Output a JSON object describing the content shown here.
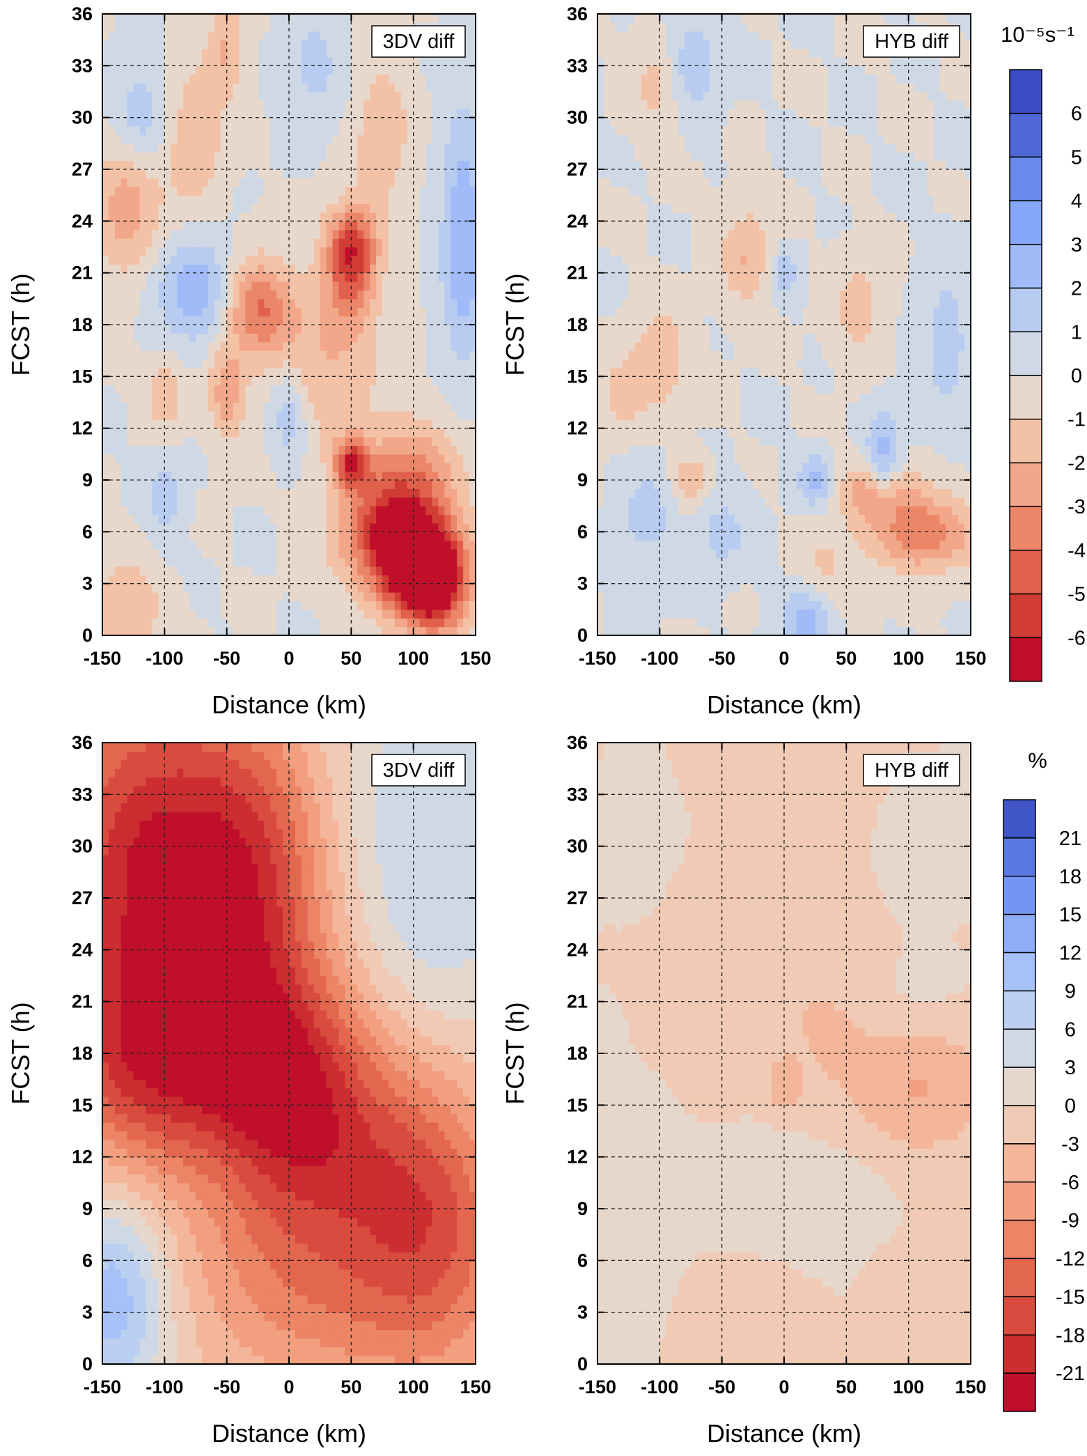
{
  "chart_data": [
    {
      "id": "p1",
      "type": "heatmap",
      "subtype": "contour",
      "title": "3DV diff",
      "xlabel": "Distance (km)",
      "ylabel": "FCST (h)",
      "xlim": [
        -150,
        150
      ],
      "ylim": [
        0,
        36
      ],
      "xticks": [
        -150,
        -100,
        -50,
        0,
        50,
        100,
        150
      ],
      "yticks": [
        0,
        3,
        6,
        9,
        12,
        15,
        18,
        21,
        24,
        27,
        30,
        33,
        36
      ],
      "colorbar": "cb1",
      "features": [
        {
          "x": 85,
          "y": 6,
          "value": -6,
          "sx": 30,
          "sy": 2.5
        },
        {
          "x": 120,
          "y": 3,
          "value": -6,
          "sx": 18,
          "sy": 2
        },
        {
          "x": 100,
          "y": 4,
          "value": -5,
          "sx": 20,
          "sy": 2
        },
        {
          "x": 50,
          "y": 10,
          "value": -5,
          "sx": 10,
          "sy": 1
        },
        {
          "x": 50,
          "y": 21,
          "value": -4,
          "sx": 14,
          "sy": 2
        },
        {
          "x": -25,
          "y": 19,
          "value": -4,
          "sx": 20,
          "sy": 2
        },
        {
          "x": 50,
          "y": 23,
          "value": -3,
          "sx": 15,
          "sy": 1.5
        },
        {
          "x": 30,
          "y": 16,
          "value": -2,
          "sx": 30,
          "sy": 3
        },
        {
          "x": -130,
          "y": 25,
          "value": -2.5,
          "sx": 20,
          "sy": 3
        },
        {
          "x": -50,
          "y": 14,
          "value": -2.5,
          "sx": 10,
          "sy": 2
        },
        {
          "x": -100,
          "y": 14,
          "value": -2,
          "sx": 10,
          "sy": 1.5
        },
        {
          "x": -75,
          "y": 29,
          "value": -2,
          "sx": 15,
          "sy": 3
        },
        {
          "x": -50,
          "y": 34,
          "value": -2,
          "sx": 10,
          "sy": 2
        },
        {
          "x": 75,
          "y": 29,
          "value": -2,
          "sx": 15,
          "sy": 3
        },
        {
          "x": 100,
          "y": 10,
          "value": -2,
          "sx": 30,
          "sy": 2
        },
        {
          "x": -130,
          "y": 1.5,
          "value": -2,
          "sx": 20,
          "sy": 2
        },
        {
          "x": -75,
          "y": 20,
          "value": 3,
          "sx": 22,
          "sy": 2
        },
        {
          "x": 140,
          "y": 23,
          "value": 3,
          "sx": 12,
          "sy": 5
        },
        {
          "x": -120,
          "y": 30,
          "value": 2,
          "sx": 15,
          "sy": 2
        },
        {
          "x": 0,
          "y": 13,
          "value": 2,
          "sx": 10,
          "sy": 2
        },
        {
          "x": 20,
          "y": 33,
          "value": 1.5,
          "sx": 15,
          "sy": 2
        },
        {
          "x": -100,
          "y": 8,
          "value": 1.5,
          "sx": 10,
          "sy": 2
        }
      ]
    },
    {
      "id": "p2",
      "type": "heatmap",
      "subtype": "contour",
      "title": "HYB diff",
      "xlabel": "Distance (km)",
      "ylabel": "FCST (h)",
      "xlim": [
        -150,
        150
      ],
      "ylim": [
        0,
        36
      ],
      "xticks": [
        -150,
        -100,
        -50,
        0,
        50,
        100,
        150
      ],
      "yticks": [
        0,
        3,
        6,
        9,
        12,
        15,
        18,
        21,
        24,
        27,
        30,
        33,
        36
      ],
      "colorbar": "cb1",
      "features": [
        {
          "x": 110,
          "y": 6,
          "value": -4,
          "sx": 30,
          "sy": 1.5
        },
        {
          "x": 75,
          "y": 8.5,
          "value": -3,
          "sx": 20,
          "sy": 1.2
        },
        {
          "x": -100,
          "y": 16,
          "value": -2,
          "sx": 15,
          "sy": 2
        },
        {
          "x": -30,
          "y": 22,
          "value": -2,
          "sx": 15,
          "sy": 2
        },
        {
          "x": -130,
          "y": 14,
          "value": -1.5,
          "sx": 12,
          "sy": 1.5
        },
        {
          "x": 60,
          "y": 19,
          "value": -1.5,
          "sx": 15,
          "sy": 2
        },
        {
          "x": -75,
          "y": 9,
          "value": -2,
          "sx": 10,
          "sy": 1
        },
        {
          "x": -100,
          "y": 32,
          "value": -1.5,
          "sx": 15,
          "sy": 2
        },
        {
          "x": 30,
          "y": 3,
          "value": -1.5,
          "sx": 15,
          "sy": 2
        },
        {
          "x": 80,
          "y": 10,
          "value": 3,
          "sx": 10,
          "sy": 2
        },
        {
          "x": 20,
          "y": 1,
          "value": 3,
          "sx": 15,
          "sy": 1.5
        },
        {
          "x": -75,
          "y": 33,
          "value": 2,
          "sx": 15,
          "sy": 2
        },
        {
          "x": 0,
          "y": 21,
          "value": 2,
          "sx": 8,
          "sy": 1
        },
        {
          "x": 25,
          "y": 9,
          "value": 2.5,
          "sx": 10,
          "sy": 1
        },
        {
          "x": 130,
          "y": 17,
          "value": 1.5,
          "sx": 15,
          "sy": 3
        },
        {
          "x": -110,
          "y": 7,
          "value": 1.5,
          "sx": 15,
          "sy": 2
        },
        {
          "x": -50,
          "y": 6,
          "value": 1.5,
          "sx": 15,
          "sy": 1.5
        }
      ]
    },
    {
      "id": "p3",
      "type": "heatmap",
      "subtype": "contour",
      "title": "3DV diff",
      "xlabel": "Distance (km)",
      "ylabel": "FCST (h)",
      "xlim": [
        -150,
        150
      ],
      "ylim": [
        0,
        36
      ],
      "xticks": [
        -150,
        -100,
        -50,
        0,
        50,
        100,
        150
      ],
      "yticks": [
        0,
        3,
        6,
        9,
        12,
        15,
        18,
        21,
        24,
        27,
        30,
        33,
        36
      ],
      "colorbar": "cb2",
      "features": [
        {
          "x": -120,
          "y": 28,
          "value": -20,
          "sx": 55,
          "sy": 9
        },
        {
          "x": -30,
          "y": 28,
          "value": -16,
          "sx": 45,
          "sy": 7
        },
        {
          "x": 0,
          "y": 16,
          "value": -14,
          "sx": 45,
          "sy": 5
        },
        {
          "x": -100,
          "y": 17,
          "value": -12,
          "sx": 60,
          "sy": 4
        },
        {
          "x": 120,
          "y": 8,
          "value": -12,
          "sx": 45,
          "sy": 6
        },
        {
          "x": 60,
          "y": 12,
          "value": -10,
          "sx": 55,
          "sy": 6
        },
        {
          "x": -20,
          "y": 6,
          "value": -6,
          "sx": 60,
          "sy": 5
        },
        {
          "x": 50,
          "y": 2,
          "value": -4,
          "sx": 70,
          "sy": 4
        },
        {
          "x": -140,
          "y": 4,
          "value": 12,
          "sx": 30,
          "sy": 4
        },
        {
          "x": 110,
          "y": 29,
          "value": 6,
          "sx": 50,
          "sy": 9
        }
      ]
    },
    {
      "id": "p4",
      "type": "heatmap",
      "subtype": "contour",
      "title": "HYB diff",
      "xlabel": "Distance (km)",
      "ylabel": "FCST (h)",
      "xlim": [
        -150,
        150
      ],
      "ylim": [
        0,
        36
      ],
      "xticks": [
        -150,
        -100,
        -50,
        0,
        50,
        100,
        150
      ],
      "yticks": [
        0,
        3,
        6,
        9,
        12,
        15,
        18,
        21,
        24,
        27,
        30,
        33,
        36
      ],
      "colorbar": "cb2",
      "features": [
        {
          "x": 110,
          "y": 16,
          "value": -6,
          "sx": 40,
          "sy": 3
        },
        {
          "x": 30,
          "y": 20,
          "value": -3,
          "sx": 40,
          "sy": 4
        },
        {
          "x": -30,
          "y": 3,
          "value": -3,
          "sx": 30,
          "sy": 2
        },
        {
          "x": 0,
          "y": 16,
          "value": -4,
          "sx": 10,
          "sy": 1
        },
        {
          "x": -60,
          "y": 23,
          "value": -2,
          "sx": 30,
          "sy": 4
        },
        {
          "x": 20,
          "y": 31,
          "value": -2,
          "sx": 40,
          "sy": 3
        },
        {
          "x": 110,
          "y": 3,
          "value": -2,
          "sx": 30,
          "sy": 3
        },
        {
          "x": -120,
          "y": 30,
          "value": 3,
          "sx": 20,
          "sy": 2
        },
        {
          "x": 110,
          "y": 30,
          "value": 3,
          "sx": 25,
          "sy": 2
        },
        {
          "x": -130,
          "y": 9,
          "value": 2,
          "sx": 30,
          "sy": 4
        },
        {
          "x": 20,
          "y": 10,
          "value": 2,
          "sx": 50,
          "sy": 3
        },
        {
          "x": 100,
          "y": 21,
          "value": 2,
          "sx": 30,
          "sy": 2
        }
      ]
    }
  ],
  "colorbars": {
    "cb1": {
      "unit": "10⁻⁵s⁻¹",
      "levels": [
        -6,
        -5,
        -4,
        -3,
        -2,
        -1,
        0,
        1,
        2,
        3,
        4,
        5,
        6
      ],
      "labels": [
        "-6",
        "-5",
        "-4",
        "-3",
        "-2",
        "-1",
        "0",
        "1",
        "2",
        "3",
        "4",
        "5",
        "6"
      ],
      "colors": [
        "#c00f2a",
        "#d13c35",
        "#e0604b",
        "#ec8669",
        "#f3a78a",
        "#f3c2a6",
        "#e8d8cc",
        "#cfd9e5",
        "#b8cbf0",
        "#a0bbf7",
        "#86a6f7",
        "#6b8aed",
        "#4f6ad8",
        "#3a4dc2"
      ]
    },
    "cb2": {
      "unit": "%",
      "levels": [
        -21,
        -18,
        -15,
        -12,
        -9,
        -6,
        -3,
        0,
        3,
        6,
        9,
        12,
        15,
        18,
        21
      ],
      "labels": [
        "-21",
        "-18",
        "-15",
        "-12",
        "-9",
        "-6",
        "-3",
        "0",
        "3",
        "6",
        "9",
        "12",
        "15",
        "18",
        "21"
      ],
      "colors": [
        "#c00f2a",
        "#cb2d31",
        "#d84b3e",
        "#e3664f",
        "#ec8466",
        "#f29f80",
        "#f4b69a",
        "#f1cab5",
        "#e6d7cd",
        "#cfd9e5",
        "#bbcff0",
        "#a6c1f7",
        "#8dadf7",
        "#7495f1",
        "#5a78e2",
        "#3f55c8"
      ]
    }
  }
}
